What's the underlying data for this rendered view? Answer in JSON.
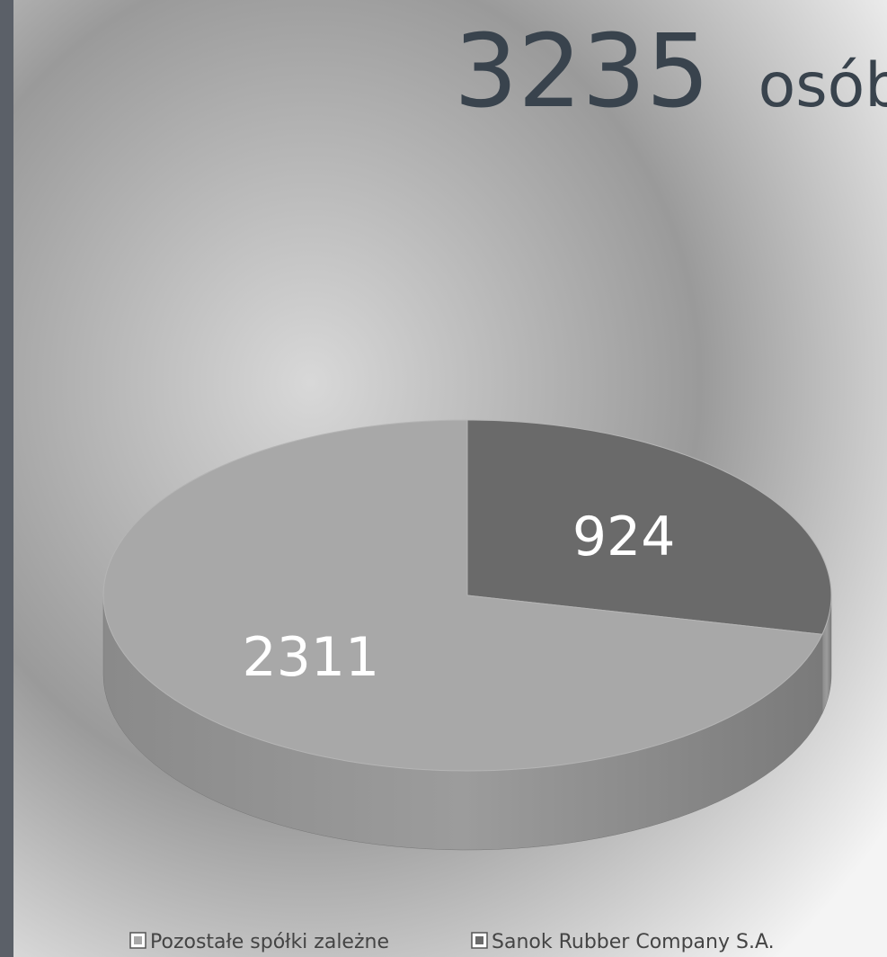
{
  "chart_data": {
    "type": "pie",
    "title": "3235",
    "title_unit": "osób",
    "categories": [
      "Pozostałe spółki zależne",
      "Sanok Rubber Company S.A."
    ],
    "values": [
      2311,
      924
    ],
    "colors": [
      "#a8a8a8",
      "#6a6a6a"
    ],
    "start": "Sanok Rubber Company S.A.",
    "legend": "bottom"
  }
}
